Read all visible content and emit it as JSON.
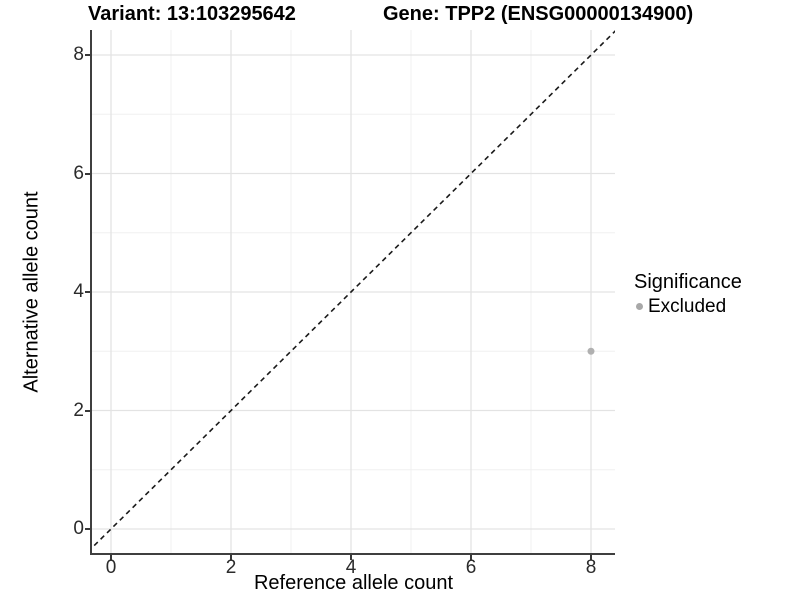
{
  "titles": {
    "variant": "Variant: 13:103295642",
    "gene": "Gene: TPP2 (ENSG00000134900)"
  },
  "chart_data": {
    "type": "scatter",
    "title": "Variant: 13:103295642   Gene: TPP2 (ENSG00000134900)",
    "xlabel": "Reference allele count",
    "ylabel": "Alternative allele count",
    "xlim": [
      -0.35,
      8.4
    ],
    "ylim": [
      -0.4,
      8.42
    ],
    "x_ticks": [
      0,
      2,
      4,
      6,
      8
    ],
    "y_ticks": [
      0,
      2,
      4,
      6,
      8
    ],
    "x_minor_ticks": [
      1,
      3,
      5,
      7
    ],
    "y_minor_ticks": [
      1,
      3,
      5,
      7
    ],
    "grid": "major and minor gridlines on, white panel",
    "identity_line": {
      "equation": "y = x",
      "style": "dashed",
      "color": "#1a1a1a"
    },
    "series": [
      {
        "name": "Excluded",
        "color": "#b0b0b0",
        "points": [
          {
            "x": 8,
            "y": 3
          }
        ]
      }
    ],
    "legend": {
      "title": "Significance",
      "position": "right",
      "items": [
        {
          "label": "Excluded",
          "color": "#a8a8a8"
        }
      ]
    },
    "colors": {
      "grid_major": "#e3e3e3",
      "grid_minor": "#f0f0f0",
      "axis_line": "#3f3f3f",
      "point": "#b0b0b0"
    }
  }
}
